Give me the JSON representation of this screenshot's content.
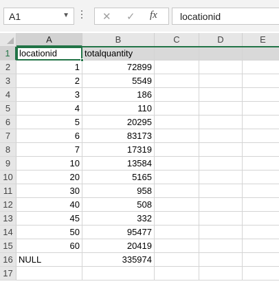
{
  "formula_bar": {
    "name_box": "A1",
    "formula": "locationid"
  },
  "columns": [
    "A",
    "B",
    "C",
    "D",
    "E"
  ],
  "rows": [
    {
      "n": "1",
      "a": "locationid",
      "b": "totalquantity"
    },
    {
      "n": "2",
      "a": "1",
      "b": "72899"
    },
    {
      "n": "3",
      "a": "2",
      "b": "5549"
    },
    {
      "n": "4",
      "a": "3",
      "b": "186"
    },
    {
      "n": "5",
      "a": "4",
      "b": "110"
    },
    {
      "n": "6",
      "a": "5",
      "b": "20295"
    },
    {
      "n": "7",
      "a": "6",
      "b": "83173"
    },
    {
      "n": "8",
      "a": "7",
      "b": "17319"
    },
    {
      "n": "9",
      "a": "10",
      "b": "13584"
    },
    {
      "n": "10",
      "a": "20",
      "b": "5165"
    },
    {
      "n": "11",
      "a": "30",
      "b": "958"
    },
    {
      "n": "12",
      "a": "40",
      "b": "508"
    },
    {
      "n": "13",
      "a": "45",
      "b": "332"
    },
    {
      "n": "14",
      "a": "50",
      "b": "95477"
    },
    {
      "n": "15",
      "a": "60",
      "b": "20419"
    },
    {
      "n": "16",
      "a": "NULL",
      "b": "335974"
    },
    {
      "n": "17",
      "a": "",
      "b": ""
    }
  ],
  "colors": {
    "accent": "#217346",
    "header_bg": "#e6e6e6",
    "highlight_row": "#d9d9d9"
  }
}
